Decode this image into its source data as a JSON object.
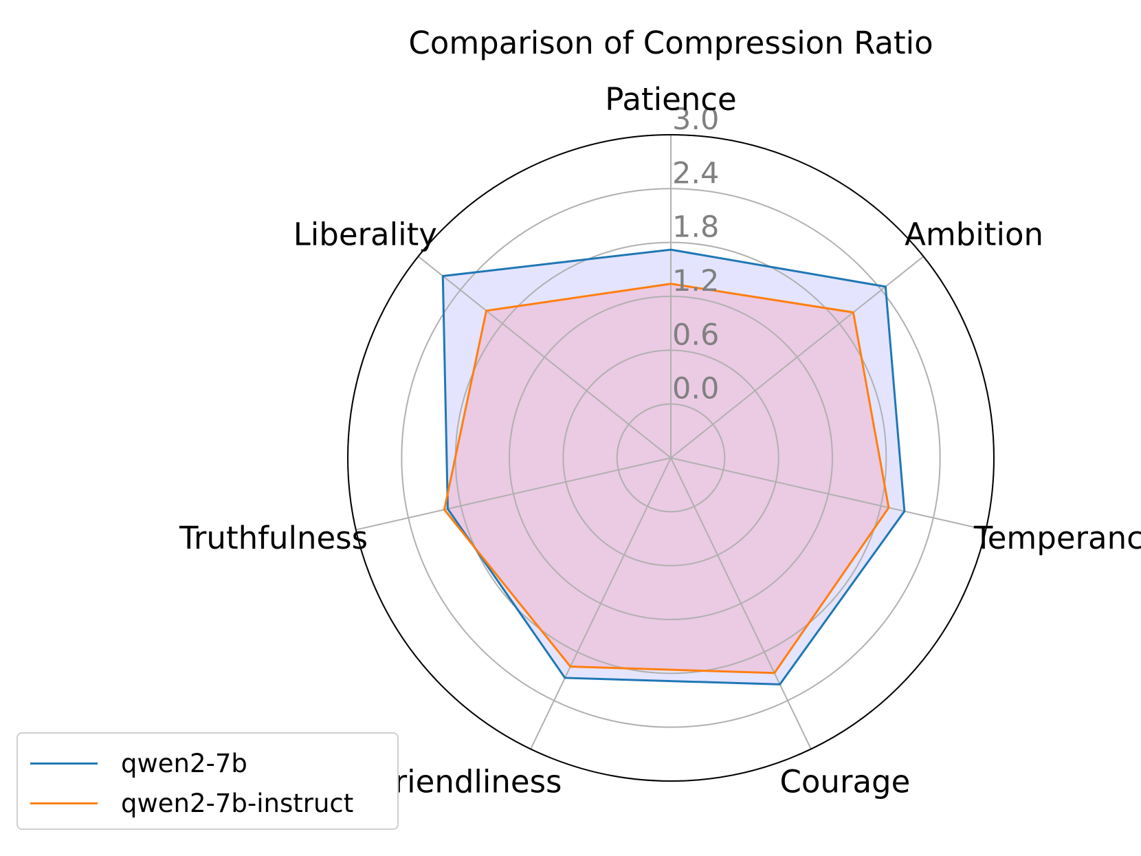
{
  "chart_data": {
    "type": "radar",
    "title": "Comparison of Compression Ratio",
    "categories": [
      "Patience",
      "Ambition",
      "Temperance",
      "Courage",
      "Friendliness",
      "Truthfulness",
      "Liberality"
    ],
    "radial_ticks": [
      "0.0",
      "0.6",
      "1.2",
      "1.8",
      "2.4",
      "3.0"
    ],
    "rlim": [
      -0.6,
      3.0
    ],
    "grid": true,
    "legend_position": "lower-left",
    "series": [
      {
        "name": "qwen2-7b",
        "values": [
          1.72,
          2.46,
          2.07,
          2.2,
          2.12,
          1.95,
          2.65
        ],
        "color": "#1f77b4",
        "fill": "#d8d8ff",
        "fill_opacity": 0.7
      },
      {
        "name": "qwen2-7b-instruct",
        "values": [
          1.34,
          2.0,
          1.89,
          2.06,
          1.98,
          1.99,
          2.03
        ],
        "color": "#ff7f0e",
        "fill": "#f0b4cc",
        "fill_opacity": 0.55
      }
    ]
  }
}
